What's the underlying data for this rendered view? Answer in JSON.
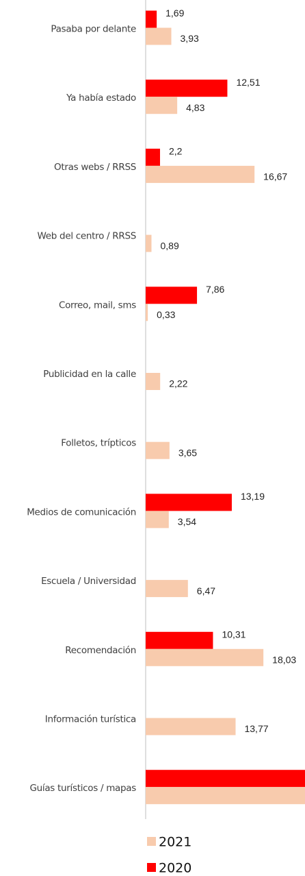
{
  "chart_data": {
    "type": "bar",
    "orientation": "horizontal",
    "categories": [
      "Pasaba por delante",
      "Ya había estado",
      "Otras webs / RRSS",
      "Web del centro / RRSS",
      "Correo, mail, sms",
      "Publicidad en la calle",
      "Folletos, trípticos",
      "Medios de comunicación",
      "Escuela / Universidad",
      "Recomendación",
      "Información turística",
      "Guías turísticos / mapas"
    ],
    "series": [
      {
        "name": "2020",
        "color": "#ff0000",
        "values": [
          1.69,
          12.51,
          2.2,
          null,
          7.86,
          null,
          null,
          13.19,
          null,
          10.31,
          null,
          25
        ],
        "value_labels": [
          "1,69",
          "12,51",
          "2,2",
          null,
          "7,86",
          null,
          null,
          "13,19",
          null,
          "10,31",
          null,
          null
        ]
      },
      {
        "name": "2021",
        "color": "#f8cbad",
        "values": [
          3.93,
          4.83,
          16.67,
          0.89,
          0.33,
          2.22,
          3.65,
          3.54,
          6.47,
          18.03,
          13.77,
          25
        ],
        "value_labels": [
          "3,93",
          "4,83",
          "16,67",
          "0,89",
          "0,33",
          "2,22",
          "3,65",
          "3,54",
          "6,47",
          "18,03",
          "13,77",
          null
        ]
      }
    ],
    "xlim": [
      0,
      24.4
    ],
    "legend": "bottom"
  }
}
